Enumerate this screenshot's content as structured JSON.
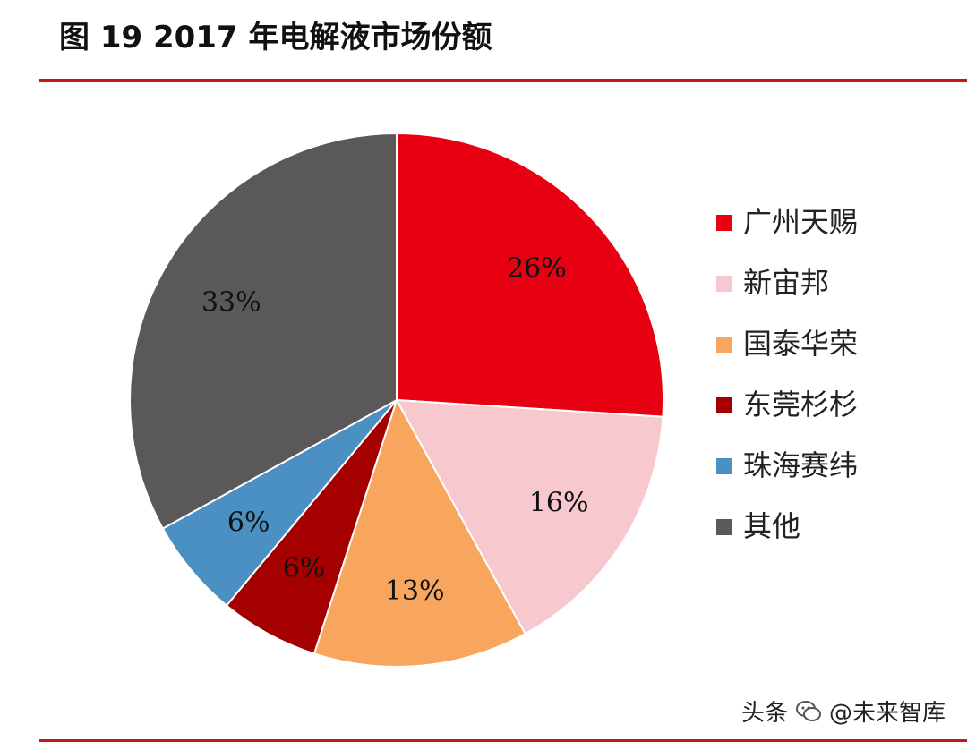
{
  "title": "图 19 2017 年电解液市场份额",
  "watermark": {
    "source": "头条",
    "handle": "@未来智库",
    "icon": "wechat-icon"
  },
  "chart_data": {
    "type": "pie",
    "title": "图 19 2017 年电解液市场份额",
    "start_angle": "12 o'clock",
    "direction": "clockwise",
    "legend_position": "right",
    "slices": [
      {
        "name": "广州天赐",
        "value": 26,
        "label": "26%",
        "color": "#e60012"
      },
      {
        "name": "新宙邦",
        "value": 16,
        "label": "16%",
        "color": "#f8c8cf"
      },
      {
        "name": "国泰华荣",
        "value": 13,
        "label": "13%",
        "color": "#f8a55e"
      },
      {
        "name": "东莞杉杉",
        "value": 6,
        "label": "6%",
        "color": "#a40000"
      },
      {
        "name": "珠海赛纬",
        "value": 6,
        "label": "6%",
        "color": "#4a90c2"
      },
      {
        "name": "其他",
        "value": 33,
        "label": "33%",
        "color": "#5a5858"
      }
    ]
  }
}
